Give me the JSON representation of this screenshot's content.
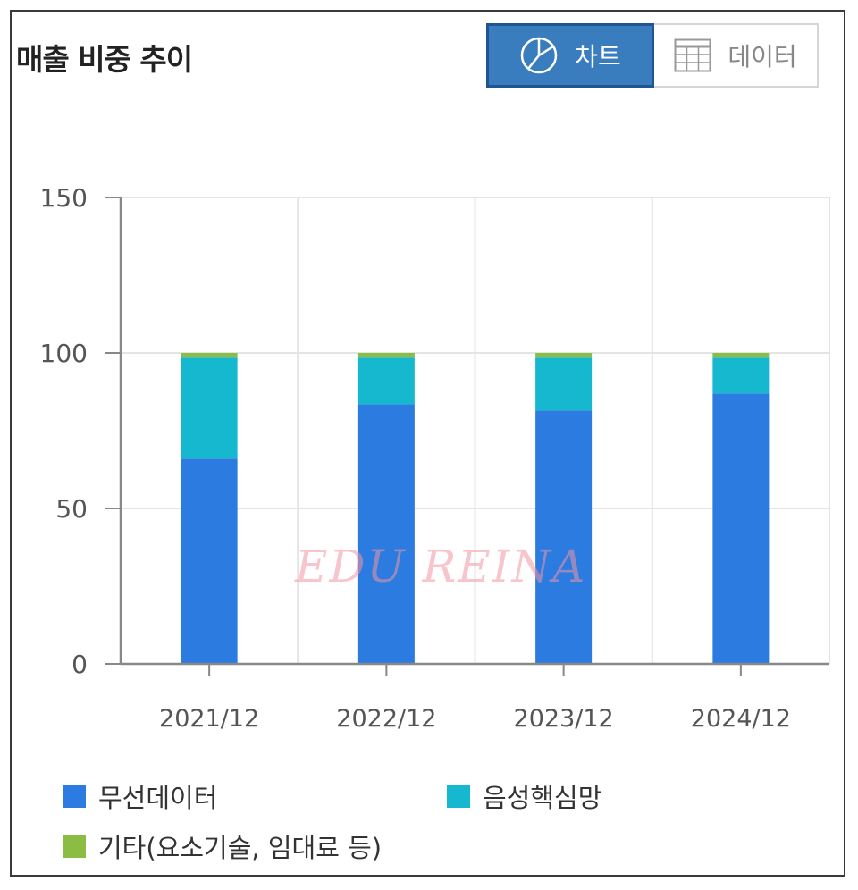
{
  "header": {
    "title": "매출 비중 추이",
    "tab_chart": "차트",
    "tab_data": "데이터"
  },
  "watermark": "EDU REINA",
  "colors": {
    "wireless": "#2b7be1",
    "voice": "#16b8cf",
    "other": "#8bbd45",
    "accent": "#3a7dbf"
  },
  "chart_data": {
    "type": "bar",
    "stacked": true,
    "categories": [
      "2021/12",
      "2022/12",
      "2023/12",
      "2024/12"
    ],
    "series": [
      {
        "name": "무선데이터",
        "values": [
          66,
          83.5,
          81.5,
          87
        ]
      },
      {
        "name": "음성핵심망",
        "values": [
          32.5,
          15,
          17,
          11.5
        ]
      },
      {
        "name": "기타(요소기술, 임대료 등)",
        "values": [
          1.5,
          1.5,
          1.5,
          1.5
        ]
      }
    ],
    "y_ticks": [
      "0",
      "50",
      "100",
      "150"
    ],
    "ylim": [
      0,
      150
    ],
    "grid": true,
    "legend_position": "bottom"
  }
}
